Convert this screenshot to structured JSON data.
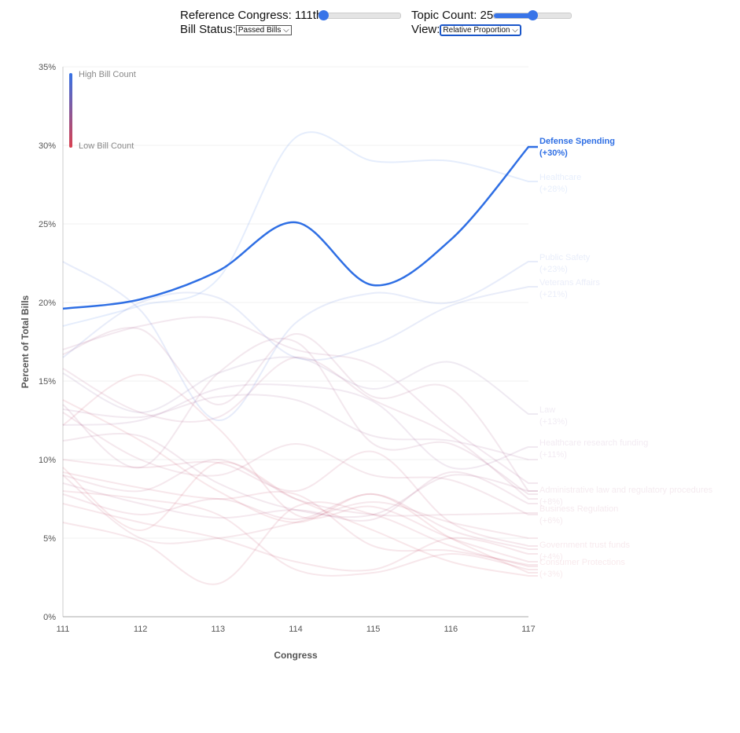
{
  "controls": {
    "reference_label": "Reference Congress: 111th",
    "reference_fraction": 0,
    "topic_label": "Topic Count: 25",
    "topic_fraction": 0.5,
    "status_label": "Bill Status:",
    "status_value": "Passed Bills",
    "view_label": "View:",
    "view_value": "Relative Proportion"
  },
  "chart_data": {
    "type": "line",
    "xlabel": "Congress",
    "ylabel": "Percent of Total Bills",
    "x": [
      111,
      112,
      113,
      114,
      115,
      116,
      117
    ],
    "ylim": [
      0,
      35
    ],
    "yticks": [
      "0%",
      "5%",
      "10%",
      "15%",
      "20%",
      "25%",
      "30%",
      "35%"
    ],
    "legend": {
      "high": "High Bill Count",
      "low": "Low Bill Count",
      "placement": "top-left"
    },
    "colors": {
      "high": "#3572e6",
      "low": "#d9404f"
    },
    "highlight": {
      "name": "Defense Spending",
      "label": "(+30%)",
      "values": [
        19.6,
        20.2,
        22,
        25.1,
        21.1,
        24,
        29.9
      ]
    },
    "series": [
      {
        "name": "Healthcare",
        "label": "(+28%)",
        "values": [
          18.5,
          19.8,
          21.5,
          30.5,
          29,
          29,
          27.7
        ]
      },
      {
        "name": "Public Safety",
        "label": "(+23%)",
        "values": [
          22.6,
          19.5,
          12.5,
          18.7,
          20.6,
          20,
          22.6
        ]
      },
      {
        "name": "Veterans Affairs",
        "label": "(+21%)",
        "values": [
          16.5,
          20,
          20.3,
          16.5,
          17.3,
          19.8,
          21
        ]
      },
      {
        "name": "Law",
        "label": "(+13%)",
        "values": [
          15.5,
          13,
          15.5,
          16.5,
          14.5,
          16.2,
          12.9
        ]
      },
      {
        "name": "Healthcare research funding",
        "label": "(+11%)",
        "values": [
          12.2,
          12.5,
          14.5,
          14.7,
          13.7,
          9.5,
          10.8
        ]
      },
      {
        "name": "Administrative law and regulatory procedures",
        "label": "(+8%)",
        "values": [
          13.5,
          9.5,
          15.5,
          17.5,
          11,
          11,
          7.8
        ]
      },
      {
        "name": "Business Regulation",
        "label": "(+6%)",
        "values": [
          9,
          8,
          10,
          7.5,
          6.5,
          6.5,
          6.6
        ]
      },
      {
        "name": "Government trust funds",
        "label": "(+4%)",
        "values": [
          7.8,
          6.5,
          7.5,
          6.2,
          7.8,
          5.5,
          4.3
        ]
      },
      {
        "name": "Consumer Protections",
        "label": "(+3%)",
        "values": [
          6,
          4.8,
          2.1,
          7,
          6.5,
          4.5,
          3.2
        ]
      },
      {
        "values": [
          16.7,
          18.3,
          13.5,
          18,
          14,
          14.5,
          8
        ]
      },
      {
        "values": [
          13.2,
          12.7,
          14,
          13.8,
          11.5,
          11.2,
          10
        ]
      },
      {
        "values": [
          11.2,
          11.5,
          8.5,
          6.8,
          6.5,
          9,
          8
        ]
      },
      {
        "values": [
          10,
          9.5,
          9.8,
          8,
          10.5,
          6,
          4.5
        ]
      },
      {
        "values": [
          9.2,
          8.2,
          7.5,
          7.8,
          4.5,
          4.2,
          3.3
        ]
      },
      {
        "values": [
          8.5,
          7.2,
          6.3,
          6.8,
          6.2,
          9.2,
          7.2
        ]
      },
      {
        "values": [
          12.2,
          15.4,
          12,
          6.5,
          7,
          5,
          3.5
        ]
      },
      {
        "values": [
          7.2,
          6,
          5,
          3.5,
          3,
          5,
          4
        ]
      },
      {
        "values": [
          9.5,
          5.5,
          9.8,
          7.5,
          5.5,
          3.5,
          2.6
        ]
      },
      {
        "values": [
          13.8,
          11.2,
          8,
          6,
          7.8,
          5,
          2.8
        ]
      },
      {
        "values": [
          8,
          7.5,
          6.5,
          3,
          2.8,
          4,
          3
        ]
      },
      {
        "values": [
          15.8,
          13,
          12.7,
          16.5,
          13.8,
          11.5,
          7.5
        ]
      },
      {
        "values": [
          17,
          18.5,
          19,
          17,
          16,
          12,
          8.5
        ]
      },
      {
        "values": [
          9,
          5,
          5,
          6,
          7.3,
          6,
          5
        ]
      },
      {
        "values": [
          13,
          10,
          9,
          11,
          9,
          8.7,
          6.5
        ]
      }
    ]
  }
}
